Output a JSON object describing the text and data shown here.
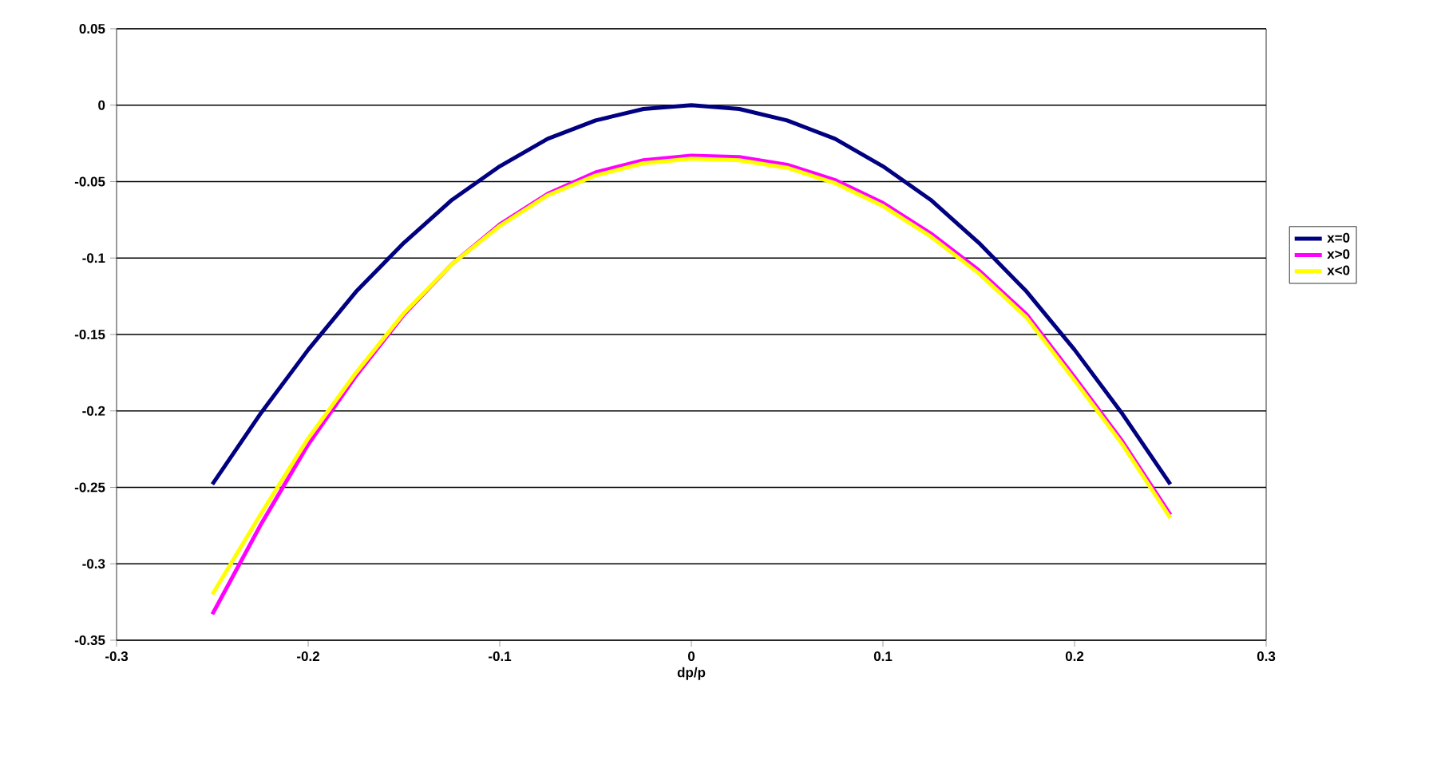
{
  "chart_data": {
    "type": "line",
    "xlabel": "dp/p",
    "x": [
      -0.25,
      -0.225,
      -0.2,
      -0.175,
      -0.15,
      -0.125,
      -0.1,
      -0.075,
      -0.05,
      -0.025,
      0,
      0.025,
      0.05,
      0.075,
      0.1,
      0.125,
      0.15,
      0.175,
      0.2,
      0.225,
      0.25
    ],
    "series": [
      {
        "name": "x=0",
        "color": "#000080",
        "values": [
          -0.248,
          -0.202,
          -0.16,
          -0.122,
          -0.09,
          -0.062,
          -0.04,
          -0.022,
          -0.01,
          -0.0025,
          0,
          -0.0025,
          -0.01,
          -0.022,
          -0.04,
          -0.062,
          -0.09,
          -0.122,
          -0.16,
          -0.202,
          -0.248
        ]
      },
      {
        "name": "x>0",
        "color": "#ff00ff",
        "values": [
          -0.333,
          -0.275,
          -0.222,
          -0.177,
          -0.137,
          -0.104,
          -0.078,
          -0.058,
          -0.044,
          -0.036,
          -0.033,
          -0.034,
          -0.039,
          -0.049,
          -0.064,
          -0.084,
          -0.108,
          -0.137,
          -0.178,
          -0.22,
          -0.268
        ]
      },
      {
        "name": "x<0",
        "color": "#ffff00",
        "values": [
          -0.32,
          -0.268,
          -0.218,
          -0.175,
          -0.136,
          -0.104,
          -0.079,
          -0.059,
          -0.046,
          -0.038,
          -0.035,
          -0.036,
          -0.041,
          -0.051,
          -0.066,
          -0.086,
          -0.11,
          -0.139,
          -0.18,
          -0.222,
          -0.27
        ]
      }
    ],
    "xlim": [
      -0.3,
      0.3
    ],
    "xticks": [
      -0.3,
      -0.2,
      -0.1,
      0,
      0.1,
      0.2,
      0.3
    ],
    "ylim": [
      -0.35,
      0.05
    ],
    "yticks": [
      -0.35,
      -0.3,
      -0.25,
      -0.2,
      -0.15,
      -0.1,
      -0.05,
      0,
      0.05
    ],
    "grid": "y",
    "legend": "right",
    "marker": "none",
    "line_style": "solid"
  }
}
